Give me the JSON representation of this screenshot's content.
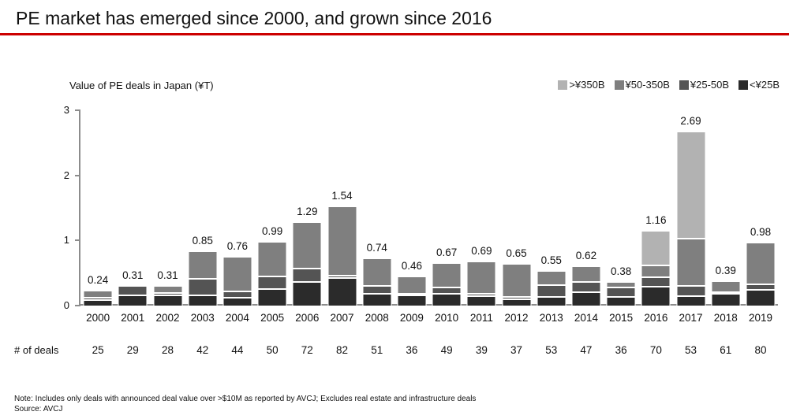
{
  "title": "PE market has emerged since 2000, and grown since 2016",
  "accent_color": "#cc0000",
  "chart_data": {
    "type": "bar",
    "stacked": true,
    "title": "Value of PE deals in Japan (¥T)",
    "xlabel": "",
    "ylabel": "Value of PE deals in Japan (¥T)",
    "ylim": [
      0,
      3
    ],
    "yticks": [
      0,
      1,
      2,
      3
    ],
    "grid": false,
    "legend_position": "top-right",
    "legend": [
      {
        "label": ">¥350B",
        "color": "#b2b2b2"
      },
      {
        "label": "¥50-350B",
        "color": "#7f7f7f"
      },
      {
        "label": "¥25-50B",
        "color": "#545454"
      },
      {
        "label": "<¥25B",
        "color": "#2b2b2b"
      }
    ],
    "categories": [
      "2000",
      "2001",
      "2002",
      "2003",
      "2004",
      "2005",
      "2006",
      "2007",
      "2008",
      "2009",
      "2010",
      "2011",
      "2012",
      "2013",
      "2014",
      "2015",
      "2016",
      "2017",
      "2018",
      "2019"
    ],
    "totals": [
      0.24,
      0.31,
      0.31,
      0.85,
      0.76,
      0.99,
      1.29,
      1.54,
      0.74,
      0.46,
      0.67,
      0.69,
      0.65,
      0.55,
      0.62,
      0.38,
      1.16,
      2.69,
      0.39,
      0.98
    ],
    "series": [
      {
        "name": "<¥25B",
        "color": "#2b2b2b",
        "values": [
          0.1,
          0.17,
          0.17,
          0.17,
          0.13,
          0.27,
          0.38,
          0.44,
          0.2,
          0.17,
          0.19,
          0.16,
          0.11,
          0.15,
          0.22,
          0.14,
          0.3,
          0.16,
          0.19,
          0.26
        ]
      },
      {
        "name": "¥25-50B",
        "color": "#545454",
        "values": [
          0.03,
          0.14,
          0.04,
          0.25,
          0.1,
          0.19,
          0.2,
          0.03,
          0.11,
          0.02,
          0.1,
          0.04,
          0.03,
          0.18,
          0.15,
          0.15,
          0.15,
          0.15,
          0.03,
          0.08
        ]
      },
      {
        "name": "¥50-350B",
        "color": "#7f7f7f",
        "values": [
          0.11,
          0.0,
          0.1,
          0.43,
          0.53,
          0.53,
          0.71,
          1.07,
          0.43,
          0.27,
          0.38,
          0.49,
          0.51,
          0.22,
          0.25,
          0.09,
          0.18,
          0.73,
          0.17,
          0.64
        ]
      },
      {
        "name": ">¥350B",
        "color": "#b2b2b2",
        "values": [
          0,
          0,
          0,
          0,
          0,
          0,
          0,
          0,
          0,
          0,
          0,
          0,
          0,
          0,
          0,
          0,
          0.53,
          1.65,
          0,
          0
        ]
      }
    ]
  },
  "deals_row": {
    "label": "# of deals",
    "values": [
      "25",
      "29",
      "28",
      "42",
      "44",
      "50",
      "72",
      "82",
      "51",
      "36",
      "49",
      "39",
      "37",
      "53",
      "47",
      "36",
      "70",
      "53",
      "61",
      "80"
    ]
  },
  "note": "Note: Includes only deals with announced deal value over >$10M as reported by AVCJ; Excludes real estate and infrastructure deals",
  "source": "Source: AVCJ"
}
